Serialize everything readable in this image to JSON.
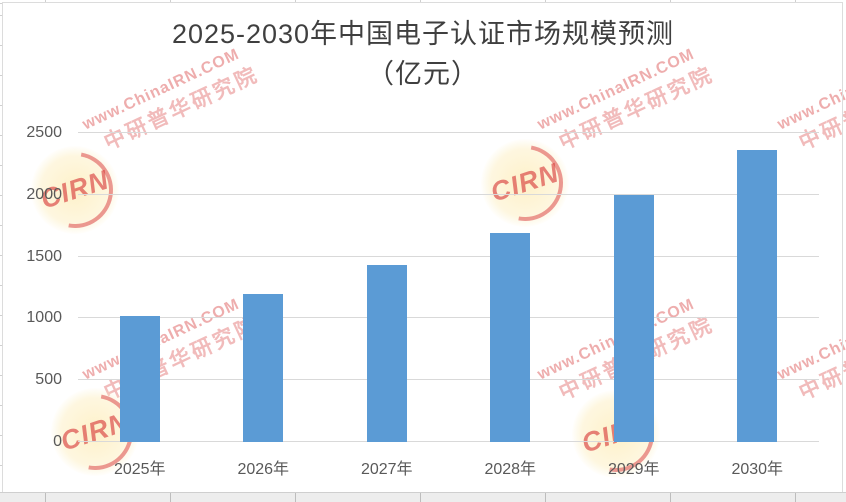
{
  "title": {
    "line1": "2025-2030年中国电子认证市场规模预测",
    "line2": "（亿元）",
    "color": "#3f3f3f"
  },
  "chart_data": {
    "type": "bar",
    "title": "2025-2030年中国电子认证市场规模预测（亿元）",
    "categories": [
      "2025年",
      "2026年",
      "2027年",
      "2028年",
      "2029年",
      "2030年"
    ],
    "values": [
      1020,
      1200,
      1430,
      1690,
      2000,
      2360
    ],
    "xlabel": "",
    "ylabel": "",
    "ylim": [
      0,
      2500
    ],
    "yticks": [
      0,
      500,
      1000,
      1500,
      2000,
      2500
    ],
    "grid": true,
    "legend": "none",
    "bar_color": "#5b9bd5",
    "gridline_color": "#d9d9d9",
    "axis_label_color": "#595959"
  },
  "watermark": {
    "line1": "www.ChinaIRN.COM",
    "line2": "中研普华研究院",
    "logo_text": "CIRN",
    "color": "#de5c5c"
  }
}
